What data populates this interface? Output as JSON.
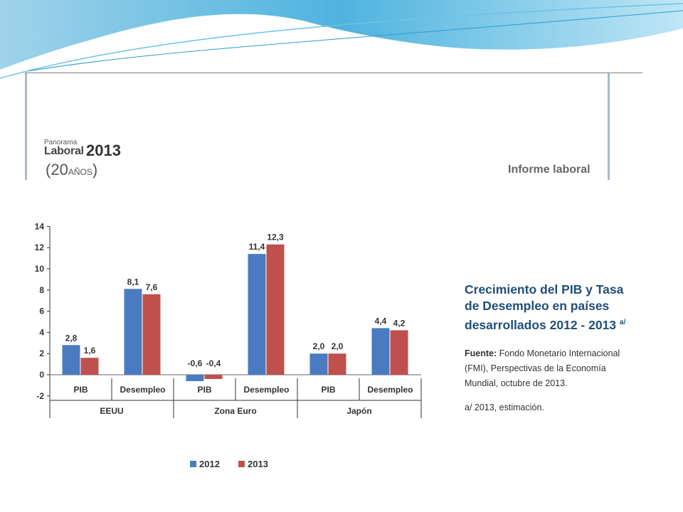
{
  "header": {
    "logo_small": "Panorama",
    "logo_laboral": "Laboral",
    "logo_year": "2013",
    "logo_anos_num": "20",
    "logo_anos_word": "AÑOS",
    "section": "Informe laboral"
  },
  "chart_data": {
    "type": "bar",
    "groups": [
      "EEUU",
      "Zona Euro",
      "Japón"
    ],
    "categories": [
      "PIB",
      "Desempleo",
      "PIB",
      "Desempleo",
      "PIB",
      "Desempleo"
    ],
    "series": [
      {
        "name": "2012",
        "values": [
          2.8,
          8.1,
          -0.6,
          11.4,
          2.0,
          4.4
        ],
        "labels": [
          "2,8",
          "8,1",
          "-0,6",
          "11,4",
          "2,0",
          "4,4"
        ],
        "color": "#4a7bc1"
      },
      {
        "name": "2013",
        "values": [
          1.6,
          7.6,
          -0.4,
          12.3,
          2.0,
          4.2
        ],
        "labels": [
          "1,6",
          "7,6",
          "-0,4",
          "12,3",
          "2,0",
          "4,2"
        ],
        "color": "#c0504d"
      }
    ],
    "yticks": [
      -2,
      0,
      2,
      4,
      6,
      8,
      10,
      12,
      14
    ],
    "ylim": [
      -2,
      14
    ],
    "legend_position": "bottom",
    "title": "Crecimiento del PIB y Tasa de Desempleo en países desarrollados 2012 - 2013",
    "title_superscript": "a/",
    "source_label": "Fuente:",
    "source_text": "Fondo Monetario Internacional (FMI), Perspectivas de la Economía Mundial, octubre de 2013.",
    "note": "a/ 2013, estimación."
  }
}
